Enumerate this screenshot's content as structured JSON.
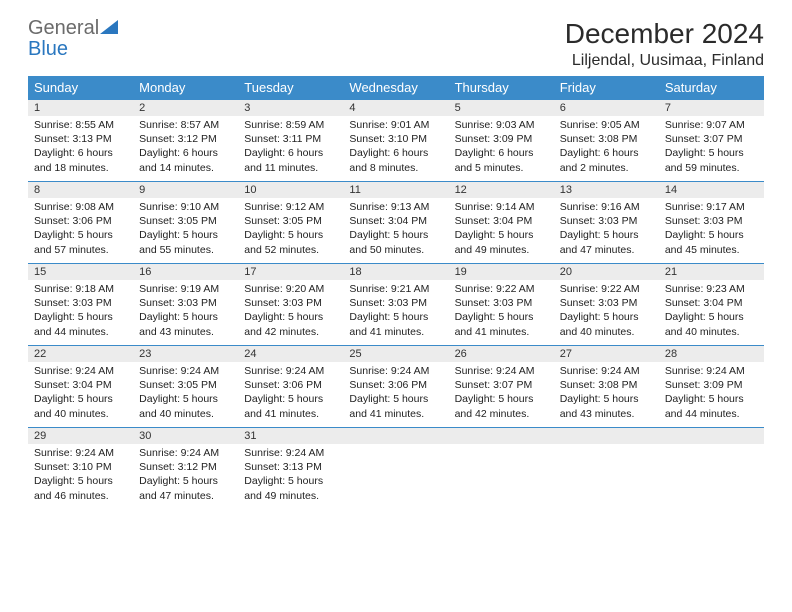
{
  "logo": {
    "word1": "General",
    "word2": "Blue",
    "icon_color": "#2a77bf"
  },
  "header": {
    "month_title": "December 2024",
    "location": "Liljendal, Uusimaa, Finland"
  },
  "colors": {
    "header_bg": "#3b8bc9",
    "header_fg": "#ffffff",
    "daynum_bg": "#ececec",
    "row_border": "#3b8bc9",
    "text": "#222222",
    "logo_gray": "#6b6b6b",
    "logo_blue": "#2a77bf"
  },
  "typography": {
    "title_fontsize": 28,
    "location_fontsize": 16,
    "th_fontsize": 13,
    "daynum_fontsize": 11,
    "body_fontsize": 10.5
  },
  "calendar": {
    "type": "table",
    "columns": [
      "Sunday",
      "Monday",
      "Tuesday",
      "Wednesday",
      "Thursday",
      "Friday",
      "Saturday"
    ],
    "weeks": [
      [
        {
          "n": "1",
          "sr": "8:55 AM",
          "ss": "3:13 PM",
          "dl": "6 hours and 18 minutes."
        },
        {
          "n": "2",
          "sr": "8:57 AM",
          "ss": "3:12 PM",
          "dl": "6 hours and 14 minutes."
        },
        {
          "n": "3",
          "sr": "8:59 AM",
          "ss": "3:11 PM",
          "dl": "6 hours and 11 minutes."
        },
        {
          "n": "4",
          "sr": "9:01 AM",
          "ss": "3:10 PM",
          "dl": "6 hours and 8 minutes."
        },
        {
          "n": "5",
          "sr": "9:03 AM",
          "ss": "3:09 PM",
          "dl": "6 hours and 5 minutes."
        },
        {
          "n": "6",
          "sr": "9:05 AM",
          "ss": "3:08 PM",
          "dl": "6 hours and 2 minutes."
        },
        {
          "n": "7",
          "sr": "9:07 AM",
          "ss": "3:07 PM",
          "dl": "5 hours and 59 minutes."
        }
      ],
      [
        {
          "n": "8",
          "sr": "9:08 AM",
          "ss": "3:06 PM",
          "dl": "5 hours and 57 minutes."
        },
        {
          "n": "9",
          "sr": "9:10 AM",
          "ss": "3:05 PM",
          "dl": "5 hours and 55 minutes."
        },
        {
          "n": "10",
          "sr": "9:12 AM",
          "ss": "3:05 PM",
          "dl": "5 hours and 52 minutes."
        },
        {
          "n": "11",
          "sr": "9:13 AM",
          "ss": "3:04 PM",
          "dl": "5 hours and 50 minutes."
        },
        {
          "n": "12",
          "sr": "9:14 AM",
          "ss": "3:04 PM",
          "dl": "5 hours and 49 minutes."
        },
        {
          "n": "13",
          "sr": "9:16 AM",
          "ss": "3:03 PM",
          "dl": "5 hours and 47 minutes."
        },
        {
          "n": "14",
          "sr": "9:17 AM",
          "ss": "3:03 PM",
          "dl": "5 hours and 45 minutes."
        }
      ],
      [
        {
          "n": "15",
          "sr": "9:18 AM",
          "ss": "3:03 PM",
          "dl": "5 hours and 44 minutes."
        },
        {
          "n": "16",
          "sr": "9:19 AM",
          "ss": "3:03 PM",
          "dl": "5 hours and 43 minutes."
        },
        {
          "n": "17",
          "sr": "9:20 AM",
          "ss": "3:03 PM",
          "dl": "5 hours and 42 minutes."
        },
        {
          "n": "18",
          "sr": "9:21 AM",
          "ss": "3:03 PM",
          "dl": "5 hours and 41 minutes."
        },
        {
          "n": "19",
          "sr": "9:22 AM",
          "ss": "3:03 PM",
          "dl": "5 hours and 41 minutes."
        },
        {
          "n": "20",
          "sr": "9:22 AM",
          "ss": "3:03 PM",
          "dl": "5 hours and 40 minutes."
        },
        {
          "n": "21",
          "sr": "9:23 AM",
          "ss": "3:04 PM",
          "dl": "5 hours and 40 minutes."
        }
      ],
      [
        {
          "n": "22",
          "sr": "9:24 AM",
          "ss": "3:04 PM",
          "dl": "5 hours and 40 minutes."
        },
        {
          "n": "23",
          "sr": "9:24 AM",
          "ss": "3:05 PM",
          "dl": "5 hours and 40 minutes."
        },
        {
          "n": "24",
          "sr": "9:24 AM",
          "ss": "3:06 PM",
          "dl": "5 hours and 41 minutes."
        },
        {
          "n": "25",
          "sr": "9:24 AM",
          "ss": "3:06 PM",
          "dl": "5 hours and 41 minutes."
        },
        {
          "n": "26",
          "sr": "9:24 AM",
          "ss": "3:07 PM",
          "dl": "5 hours and 42 minutes."
        },
        {
          "n": "27",
          "sr": "9:24 AM",
          "ss": "3:08 PM",
          "dl": "5 hours and 43 minutes."
        },
        {
          "n": "28",
          "sr": "9:24 AM",
          "ss": "3:09 PM",
          "dl": "5 hours and 44 minutes."
        }
      ],
      [
        {
          "n": "29",
          "sr": "9:24 AM",
          "ss": "3:10 PM",
          "dl": "5 hours and 46 minutes."
        },
        {
          "n": "30",
          "sr": "9:24 AM",
          "ss": "3:12 PM",
          "dl": "5 hours and 47 minutes."
        },
        {
          "n": "31",
          "sr": "9:24 AM",
          "ss": "3:13 PM",
          "dl": "5 hours and 49 minutes."
        },
        null,
        null,
        null,
        null
      ]
    ],
    "labels": {
      "sunrise": "Sunrise:",
      "sunset": "Sunset:",
      "daylight": "Daylight:"
    }
  }
}
